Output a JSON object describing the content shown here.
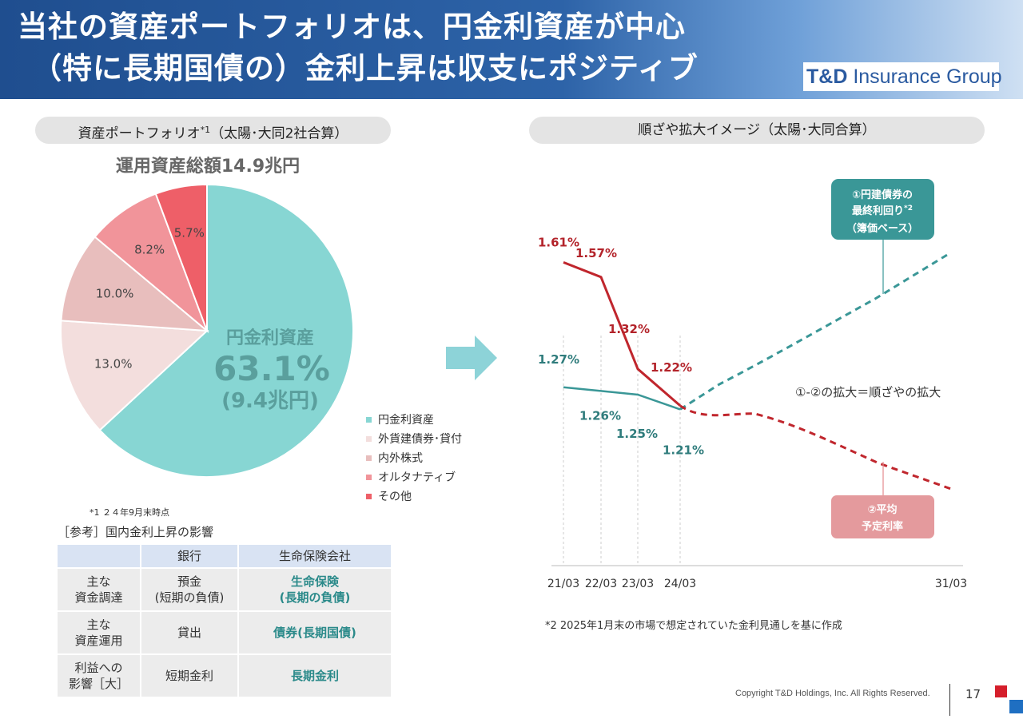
{
  "header": {
    "title_line1": "当社の資産ポートフォリオは、円金利資産が中心",
    "title_line2": "（特に長期国債の）金利上昇は収支にポジティブ",
    "brand_bold": "T&D",
    "brand_rest": " Insurance Group"
  },
  "left": {
    "pill_label": "資産ポートフォリオ",
    "pill_sup": "*1",
    "pill_suffix": "（太陽･大同2社合算）",
    "total": "運用資産総額14.9兆円",
    "center_label": "円金利資産",
    "center_pct": "63.1%",
    "center_amount": "(9.4兆円)",
    "note": "*1 ２４年9月末時点"
  },
  "chart_data": [
    {
      "type": "pie",
      "title": "",
      "slices": [
        {
          "name": "円金利資産",
          "value": 63.1,
          "label": "",
          "color": "#87d6d3"
        },
        {
          "name": "外貨建債券･貸付",
          "value": 13.0,
          "label": "13.0%",
          "color": "#f3dedd"
        },
        {
          "name": "内外株式",
          "value": 10.0,
          "label": "10.0%",
          "color": "#e8bebd"
        },
        {
          "name": "オルタナティブ",
          "value": 8.2,
          "label": "8.2%",
          "color": "#f1949a"
        },
        {
          "name": "その他",
          "value": 5.7,
          "label": "5.7%",
          "color": "#ee5f68"
        }
      ],
      "legend_position": "right"
    },
    {
      "type": "line",
      "title": "",
      "x_ticks": [
        "21/03",
        "22/03",
        "23/03",
        "24/03",
        "31/03"
      ],
      "series": [
        {
          "name": "①円建債券の最終利回り*2（簿価ベース）",
          "color": "#3a9797",
          "x": [
            0,
            1,
            2,
            3
          ],
          "values": [
            1.27,
            1.26,
            1.25,
            1.21
          ],
          "value_labels": [
            "1.27%",
            "1.26%",
            "1.25%",
            "1.21%"
          ],
          "projection": "rising"
        },
        {
          "name": "②平均予定利率",
          "color": "#c0262d",
          "x": [
            0,
            1,
            2,
            3
          ],
          "values": [
            1.61,
            1.57,
            1.32,
            1.22
          ],
          "value_labels": [
            "1.61%",
            "1.57%",
            "1.32%",
            "1.22%"
          ],
          "projection": "falling"
        }
      ],
      "annotation": "①-②の拡大＝順ざやの拡大",
      "grid": false
    }
  ],
  "reference": {
    "title": "［参考］国内金利上昇の影響",
    "headers": [
      "",
      "銀行",
      "生命保険会社"
    ],
    "rows": [
      {
        "label": "主な\n資金調達",
        "bank": "預金\n(短期の負債)",
        "life": "生命保険\n(長期の負債)"
      },
      {
        "label": "主な\n資産運用",
        "bank": "貸出",
        "life": "債券(長期国債)"
      },
      {
        "label": "利益への\n影響［大］",
        "bank": "短期金利",
        "life": "長期金利"
      }
    ]
  },
  "right": {
    "pill_label": "順ざや拡大イメージ（太陽･大同合算）",
    "callout_yield_l1": "①円建債券の",
    "callout_yield_l2": "最終利回り",
    "callout_yield_sup": "*2",
    "callout_yield_l3": "（簿価ベース）",
    "callout_rate_l1": "②平均",
    "callout_rate_l2": "予定利率",
    "note": "*2 2025年1月末の市場で想定されていた金利見通しを基に作成"
  },
  "footer": {
    "copyright": "Copyright T&D Holdings, Inc. All Rights Reserved.",
    "page": "17"
  }
}
